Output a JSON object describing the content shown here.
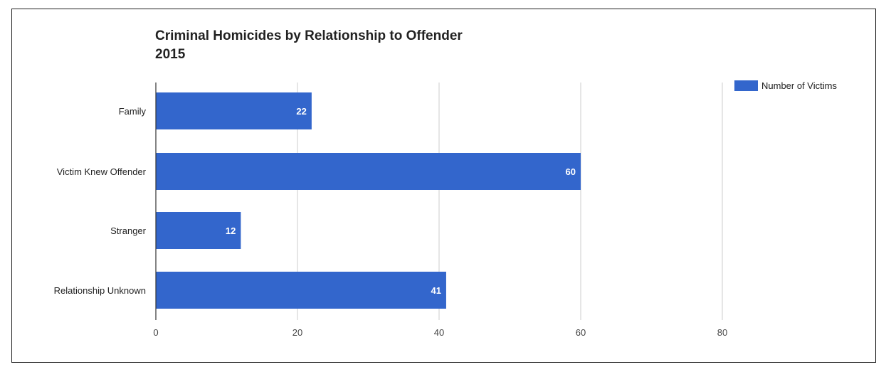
{
  "chart_data": {
    "type": "bar",
    "orientation": "horizontal",
    "title_line1": "Criminal Homicides by Relationship to Offender",
    "title_line2": "2015",
    "categories": [
      "Family",
      "Victim Knew Offender",
      "Stranger",
      "Relationship Unknown"
    ],
    "series": [
      {
        "name": "Number of Victims",
        "values": [
          22,
          60,
          12,
          41
        ],
        "color": "#3366cc"
      }
    ],
    "xlim": [
      0,
      80
    ],
    "x_ticks": [
      "0",
      "20",
      "40",
      "60",
      "80"
    ],
    "grid": true,
    "legend": "top-right",
    "data_labels": true
  }
}
